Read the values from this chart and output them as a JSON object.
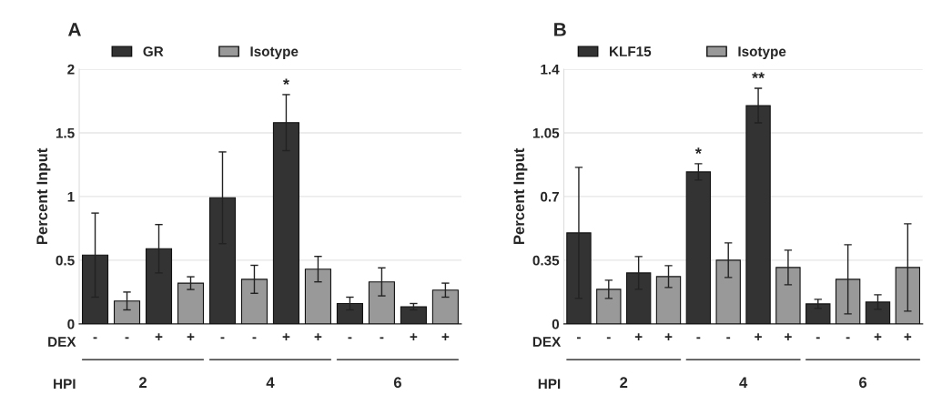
{
  "chart_data": [
    {
      "type": "bar",
      "title": "A",
      "ylabel": "Percent Input",
      "categories": [
        "-",
        "-",
        "+",
        "+",
        "-",
        "-",
        "+",
        "+",
        "-",
        "-",
        "+",
        "+"
      ],
      "series": [
        {
          "name": "GR",
          "color": "#333333",
          "values": [
            0.54,
            null,
            0.59,
            null,
            0.99,
            null,
            1.58,
            null,
            0.16,
            null,
            0.135,
            null
          ],
          "errors": [
            0.33,
            null,
            0.19,
            null,
            0.36,
            null,
            0.22,
            null,
            0.05,
            null,
            0.025,
            null
          ],
          "value_labels": [
            null,
            null,
            null,
            null,
            null,
            null,
            "*",
            null,
            null,
            null,
            null,
            null
          ]
        },
        {
          "name": "Isotype",
          "color": "#999999",
          "values": [
            null,
            0.18,
            null,
            0.32,
            null,
            0.35,
            null,
            0.43,
            null,
            0.33,
            null,
            0.265
          ],
          "errors": [
            null,
            0.07,
            null,
            0.05,
            null,
            0.11,
            null,
            0.1,
            null,
            0.11,
            null,
            0.055
          ]
        }
      ],
      "ylim": [
        0,
        2
      ],
      "yticks": [
        0,
        0.5,
        1,
        1.5,
        2
      ],
      "grid": "y",
      "legend": "top",
      "annotations": [
        "DEX",
        "HPI",
        "2",
        "4",
        "6"
      ]
    },
    {
      "type": "bar",
      "title": "B",
      "ylabel": "Percent Input",
      "categories": [
        "-",
        "-",
        "+",
        "+",
        "-",
        "-",
        "+",
        "+",
        "-",
        "-",
        "+",
        "+"
      ],
      "series": [
        {
          "name": "KLF15",
          "color": "#333333",
          "values": [
            0.5,
            null,
            0.28,
            null,
            0.835,
            null,
            1.2,
            null,
            0.11,
            null,
            0.12,
            null
          ],
          "errors": [
            0.36,
            null,
            0.09,
            null,
            0.045,
            null,
            0.095,
            null,
            0.025,
            null,
            0.04,
            null
          ],
          "value_labels": [
            null,
            null,
            null,
            null,
            "*",
            null,
            "**",
            null,
            null,
            null,
            null,
            null
          ]
        },
        {
          "name": "Isotype",
          "color": "#999999",
          "values": [
            null,
            0.19,
            null,
            0.26,
            null,
            0.35,
            null,
            0.31,
            null,
            0.245,
            null,
            0.31
          ],
          "errors": [
            null,
            0.05,
            null,
            0.06,
            null,
            0.095,
            null,
            0.095,
            null,
            0.19,
            null,
            0.24
          ]
        }
      ],
      "ylim": [
        0,
        1.4
      ],
      "yticks": [
        0,
        0.35,
        0.7,
        1.05,
        1.4
      ],
      "grid": "y",
      "legend": "top",
      "annotations": [
        "DEX",
        "HPI",
        "2",
        "4",
        "6"
      ]
    }
  ]
}
